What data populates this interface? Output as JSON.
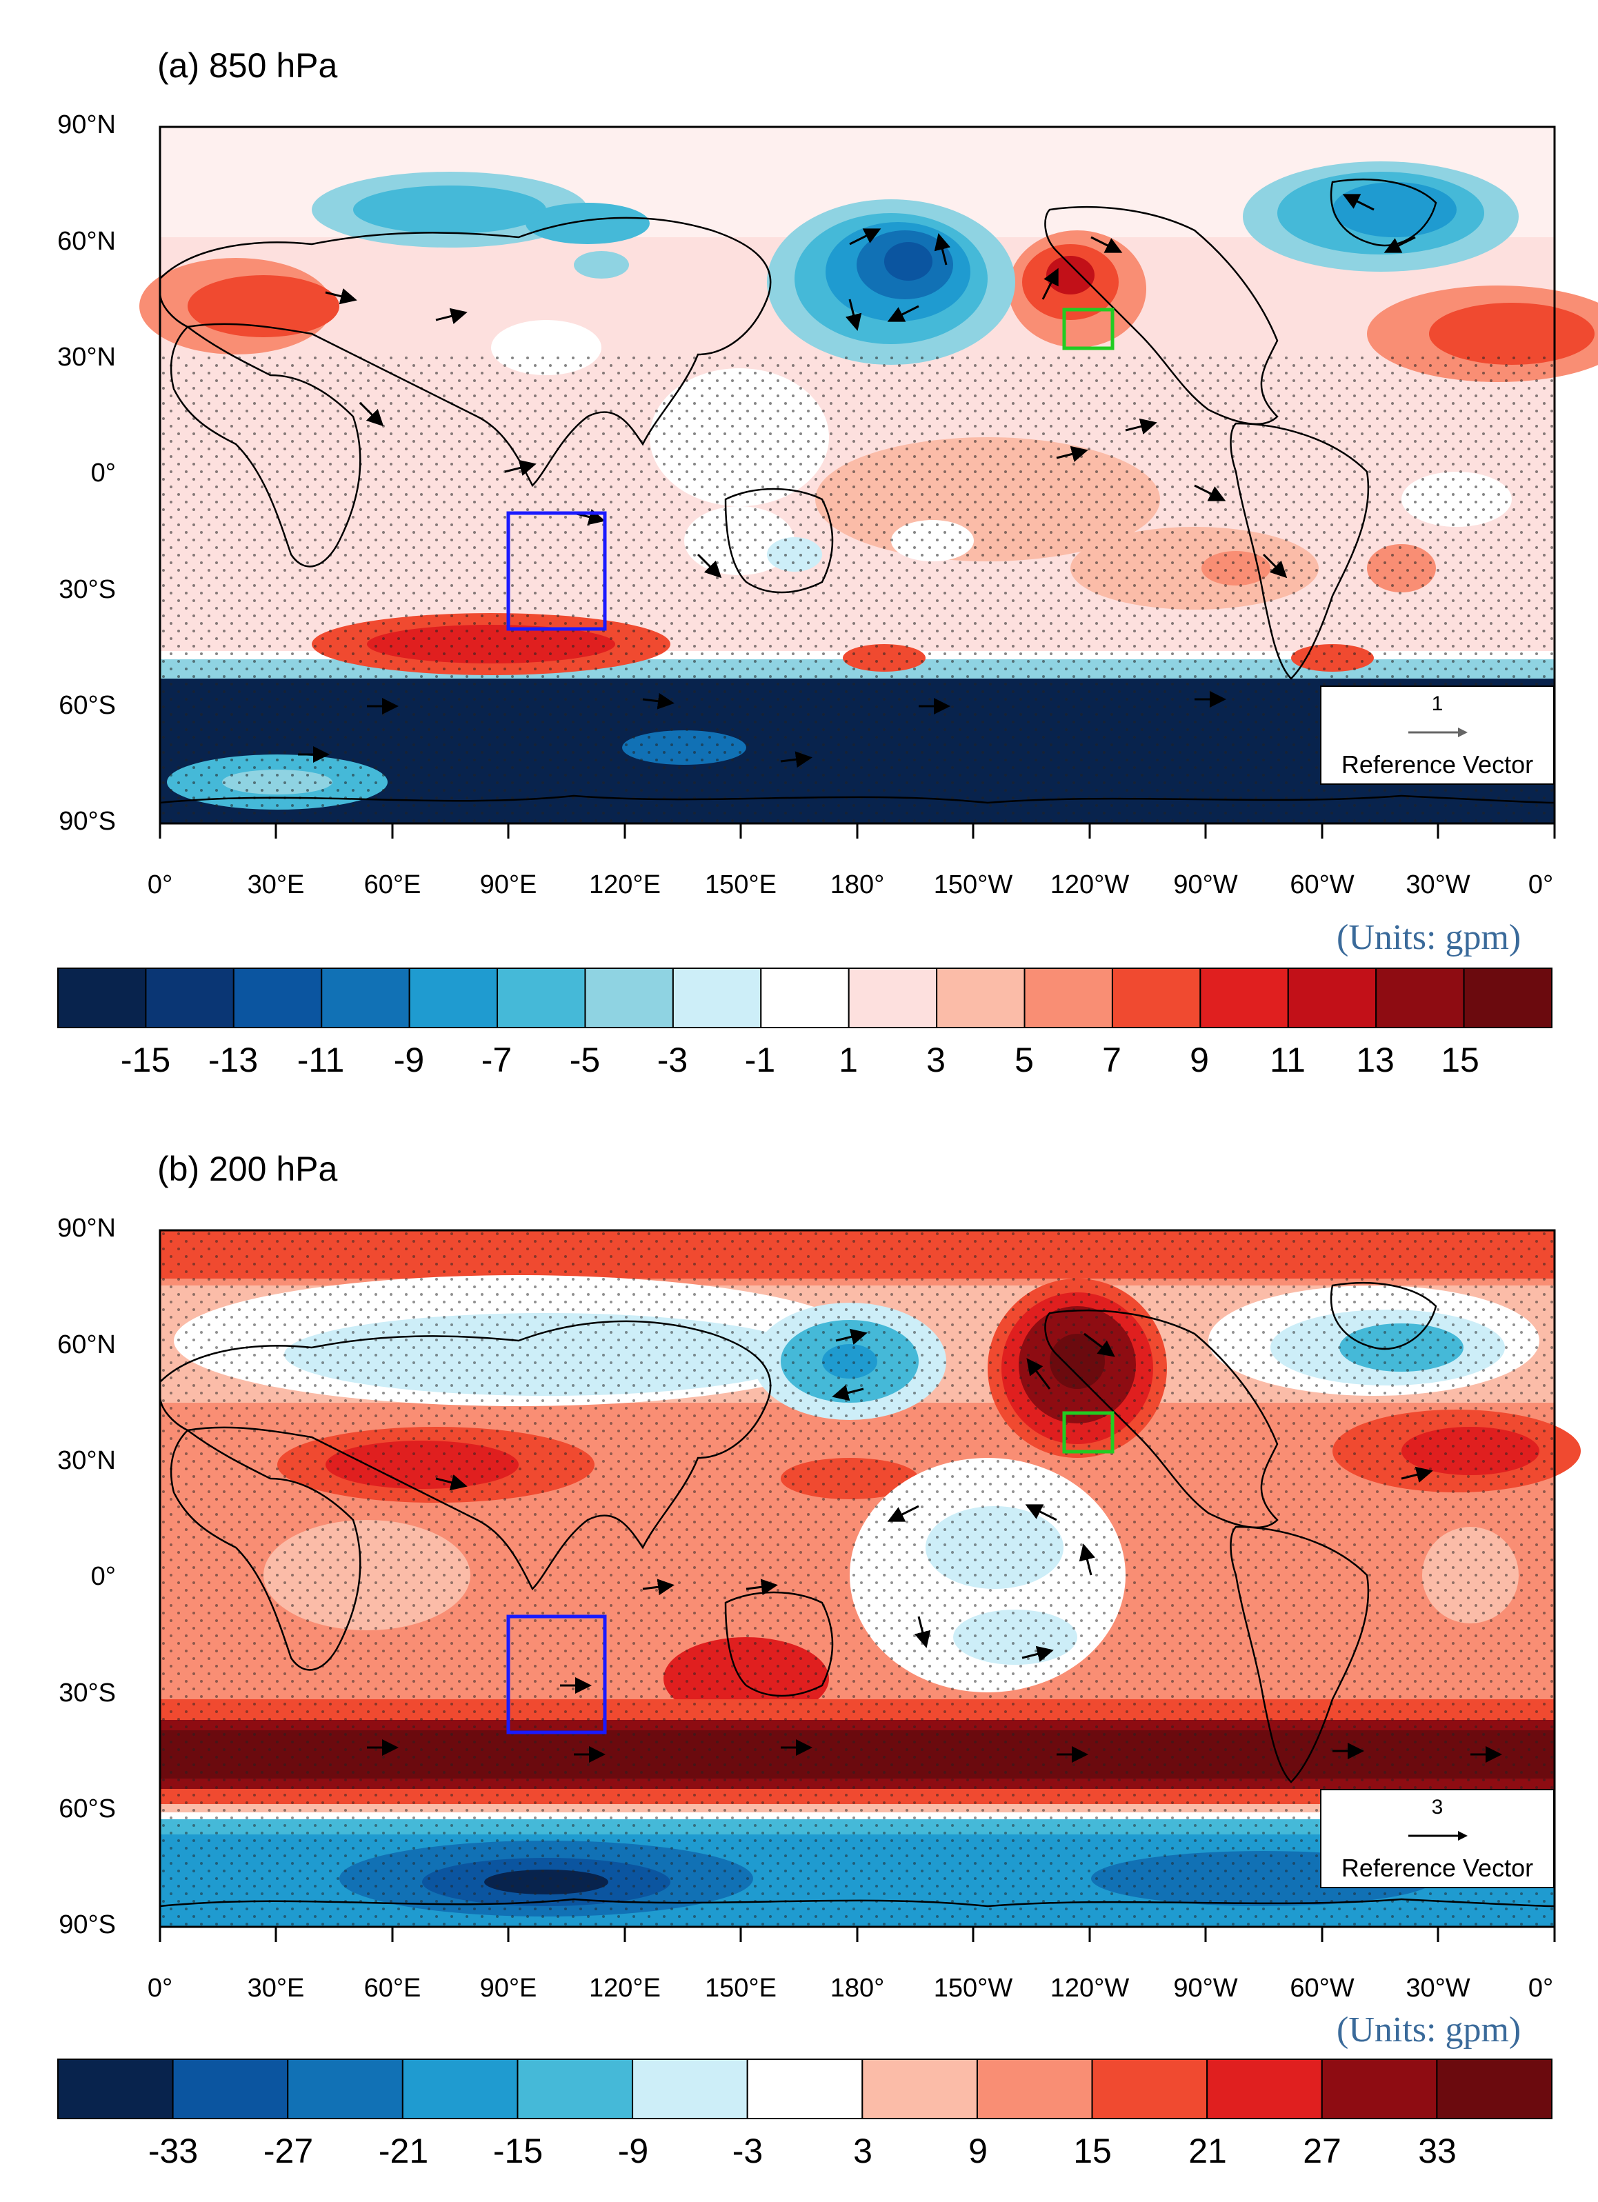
{
  "panels": [
    {
      "title": "(a) 850 hPa",
      "units_label": "(Units: gpm)",
      "latitude_labels": [
        "90°N",
        "60°N",
        "30°N",
        "0°",
        "30°S",
        "60°S",
        "90°S"
      ],
      "longitude_labels": [
        "0°",
        "30°E",
        "60°E",
        "90°E",
        "120°E",
        "150°E",
        "180°",
        "150°W",
        "120°W",
        "90°W",
        "60°W",
        "30°W",
        "0°"
      ],
      "reference_vector": {
        "value": "1",
        "label": "Reference Vector"
      },
      "colorbar_labels": [
        "-15",
        "-13",
        "-11",
        "-9",
        "-7",
        "-5",
        "-3",
        "-1",
        "1",
        "3",
        "5",
        "7",
        "9",
        "11",
        "13",
        "15"
      ],
      "colorbar_colors": [
        "#08234d",
        "#0a3674",
        "#0b55a0",
        "#1171b5",
        "#1f9bd0",
        "#45b9d8",
        "#8fd3e2",
        "#cdeef8",
        "#ffffff",
        "#fde0de",
        "#fbbca8",
        "#f98e74",
        "#f04a30",
        "#e01f1f",
        "#c21018",
        "#8e0c12",
        "#6b0a0e"
      ],
      "boxes": [
        {
          "color": "#1a1aff",
          "description": "region 90°E-115°E, 10°S-40°S"
        },
        {
          "color": "#22cc22",
          "description": "region 125°W-115°W, 33°N-42°N"
        }
      ]
    },
    {
      "title": "(b) 200 hPa",
      "units_label": "(Units: gpm)",
      "latitude_labels": [
        "90°N",
        "60°N",
        "30°N",
        "0°",
        "30°S",
        "60°S",
        "90°S"
      ],
      "longitude_labels": [
        "0°",
        "30°E",
        "60°E",
        "90°E",
        "120°E",
        "150°E",
        "180°",
        "150°W",
        "120°W",
        "90°W",
        "60°W",
        "30°W",
        "0°"
      ],
      "reference_vector": {
        "value": "3",
        "label": "Reference Vector"
      },
      "colorbar_labels": [
        "-33",
        "-27",
        "-21",
        "-15",
        "-9",
        "-3",
        "3",
        "9",
        "15",
        "21",
        "27",
        "33"
      ],
      "colorbar_colors": [
        "#08234d",
        "#0b55a0",
        "#1171b5",
        "#1f9bd0",
        "#45b9d8",
        "#cdeef8",
        "#ffffff",
        "#fbbca8",
        "#f98e74",
        "#f04a30",
        "#e01f1f",
        "#8e0c12",
        "#6b0a0e"
      ],
      "boxes": [
        {
          "color": "#1a1aff",
          "description": "region 90°E-115°E, 10°S-40°S"
        },
        {
          "color": "#22cc22",
          "description": "region 125°W-115°W, 33°N-42°N"
        }
      ]
    }
  ]
}
